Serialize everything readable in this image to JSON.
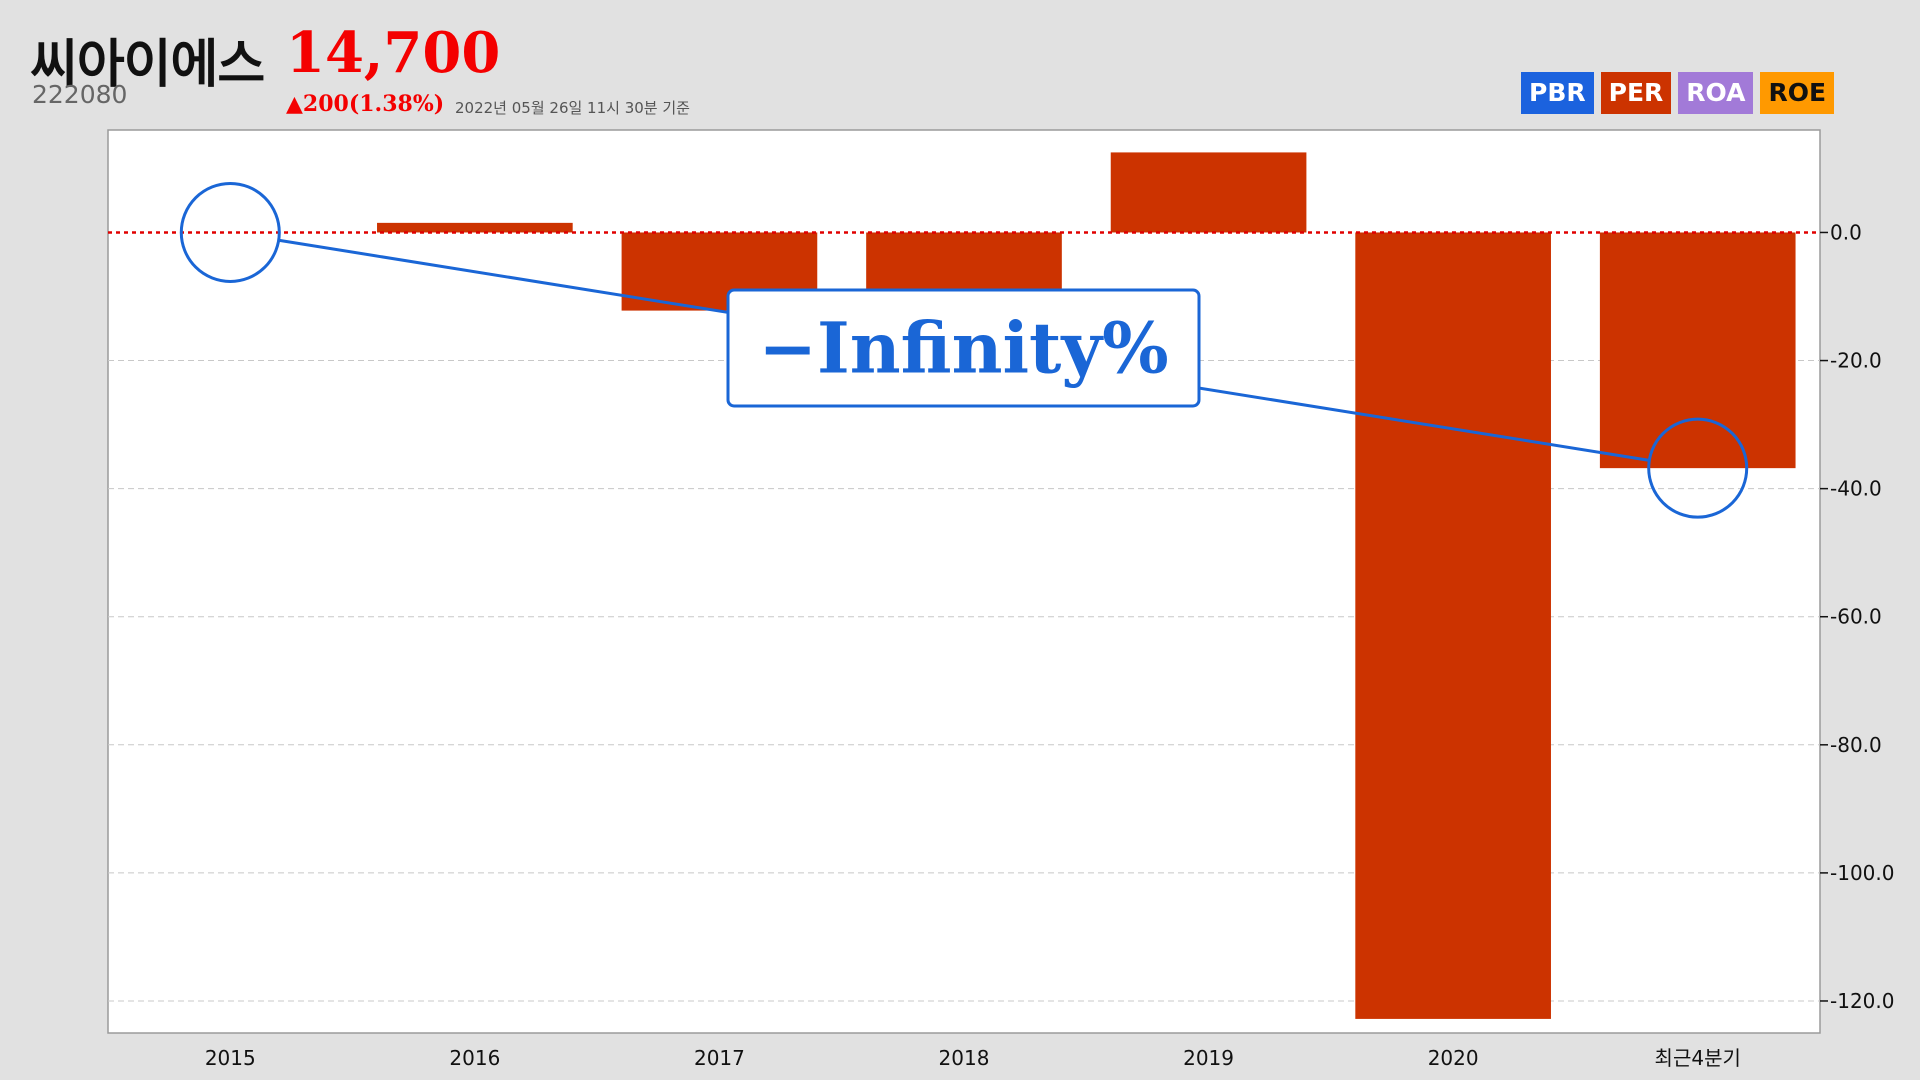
{
  "header": {
    "company": "씨아이에스",
    "price": "14,700",
    "code": "222080",
    "change": "▲200(1.38%)",
    "timestamp": "2022년 05월 26일 11시 30분 기준"
  },
  "legend": [
    {
      "label": "PBR",
      "color": "#1b62de"
    },
    {
      "label": "PER",
      "color": "#cc3300"
    },
    {
      "label": "ROA",
      "color": "#a27ad8"
    },
    {
      "label": "ROE",
      "color": "#ff9900"
    }
  ],
  "callout": {
    "text": "−Infinity%",
    "from_category": "2015",
    "to_category": "최근4분기"
  },
  "chart_data": {
    "type": "bar",
    "categories": [
      "2015",
      "2016",
      "2017",
      "2018",
      "2019",
      "2020",
      "최근4분기"
    ],
    "series": [
      {
        "values": [
          0,
          1.5,
          -12.2,
          -10.5,
          12.5,
          -122.8,
          -36.8
        ],
        "color": "#cc3300"
      }
    ],
    "yticks": [
      0,
      -20,
      -40,
      -60,
      -80,
      -100,
      -120
    ],
    "ytick_labels": [
      "0.0",
      "-20.0",
      "-40.0",
      "-60.0",
      "-80.0",
      "-100.0",
      "-120.0"
    ],
    "ylim": [
      -125,
      16
    ],
    "zero_line_color": "#e00000",
    "grid": true
  }
}
